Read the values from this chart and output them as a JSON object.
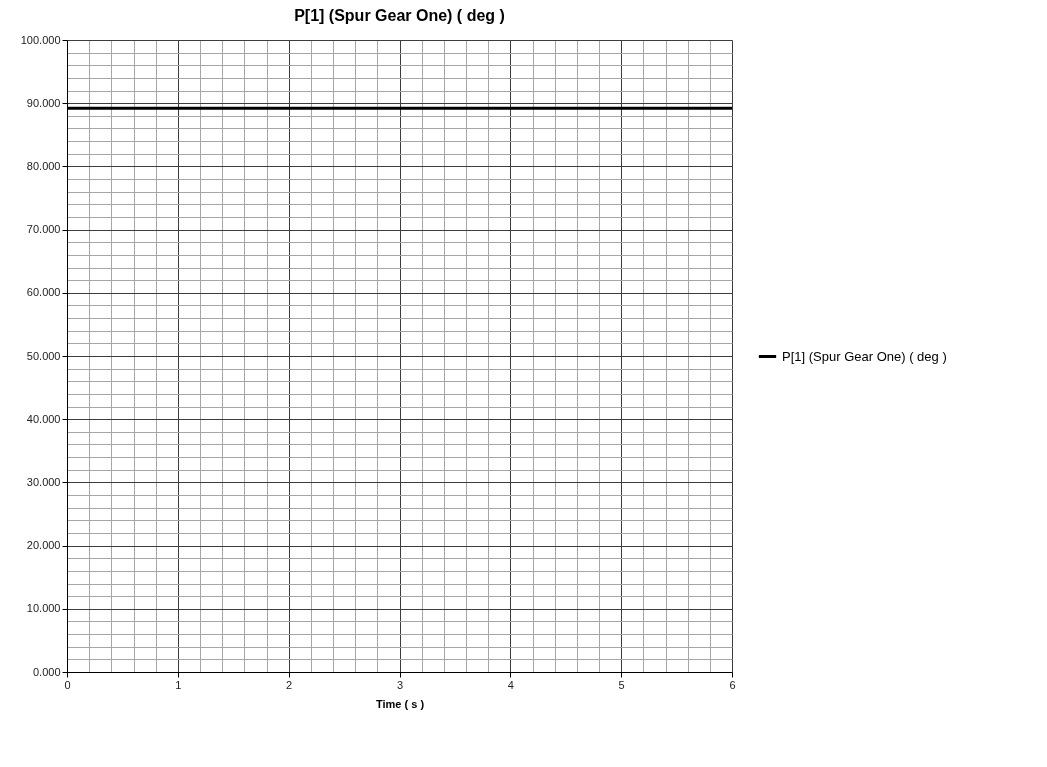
{
  "chart_data": {
    "type": "line",
    "title": "P[1] (Spur Gear One) ( deg )",
    "xlabel": "Time ( s )",
    "x": [
      0,
      6
    ],
    "series": [
      {
        "name": "P[1] (Spur Gear One) ( deg )",
        "color": "#000000",
        "values": [
          89.2,
          89.2
        ]
      }
    ],
    "xlim": [
      0,
      6
    ],
    "xticks": [
      0,
      {
        "value": 0.2,
        "label": null
      },
      {
        "value": 0.4,
        "label": null
      },
      {
        "value": 0.6,
        "label": null
      },
      {
        "value": 0.8,
        "label": null
      },
      1,
      {
        "value": 1.2,
        "label": null
      },
      {
        "value": 1.4,
        "label": null
      },
      {
        "value": 1.6,
        "label": null
      },
      {
        "value": 1.8,
        "label": null
      },
      2,
      {
        "value": 2.2,
        "label": null
      },
      {
        "value": 2.4,
        "label": null
      },
      {
        "value": 2.6,
        "label": null
      },
      {
        "value": 2.8,
        "label": null
      },
      3,
      {
        "value": 3.2,
        "label": null
      },
      {
        "value": 3.4,
        "label": null
      },
      {
        "value": 3.6,
        "label": null
      },
      {
        "value": 3.8,
        "label": null
      },
      4,
      {
        "value": 4.2,
        "label": null
      },
      {
        "value": 4.4,
        "label": null
      },
      {
        "value": 4.6,
        "label": null
      },
      {
        "value": 4.8,
        "label": null
      },
      5,
      {
        "value": 5.2,
        "label": null
      },
      {
        "value": 5.4,
        "label": null
      },
      {
        "value": 5.6,
        "label": null
      },
      {
        "value": 5.8,
        "label": null
      },
      6
    ],
    "ylim": [
      0,
      100
    ],
    "yticks": [
      {
        "value": 0,
        "label": "0.000"
      },
      {
        "value": 2,
        "label": null
      },
      {
        "value": 4,
        "label": null
      },
      {
        "value": 6,
        "label": null
      },
      {
        "value": 8,
        "label": null
      },
      {
        "value": 10,
        "label": "10.000"
      },
      {
        "value": 12,
        "label": null
      },
      {
        "value": 14,
        "label": null
      },
      {
        "value": 16,
        "label": null
      },
      {
        "value": 18,
        "label": null
      },
      {
        "value": 20,
        "label": "20.000"
      },
      {
        "value": 22,
        "label": null
      },
      {
        "value": 24,
        "label": null
      },
      {
        "value": 26,
        "label": null
      },
      {
        "value": 28,
        "label": null
      },
      {
        "value": 30,
        "label": "30.000"
      },
      {
        "value": 32,
        "label": null
      },
      {
        "value": 34,
        "label": null
      },
      {
        "value": 36,
        "label": null
      },
      {
        "value": 38,
        "label": null
      },
      {
        "value": 40,
        "label": "40.000"
      },
      {
        "value": 42,
        "label": null
      },
      {
        "value": 44,
        "label": null
      },
      {
        "value": 46,
        "label": null
      },
      {
        "value": 48,
        "label": null
      },
      {
        "value": 50,
        "label": "50.000"
      },
      {
        "value": 52,
        "label": null
      },
      {
        "value": 54,
        "label": null
      },
      {
        "value": 56,
        "label": null
      },
      {
        "value": 58,
        "label": null
      },
      {
        "value": 60,
        "label": "60.000"
      },
      {
        "value": 62,
        "label": null
      },
      {
        "value": 64,
        "label": null
      },
      {
        "value": 66,
        "label": null
      },
      {
        "value": 68,
        "label": null
      },
      {
        "value": 70,
        "label": "70.000"
      },
      {
        "value": 72,
        "label": null
      },
      {
        "value": 74,
        "label": null
      },
      {
        "value": 76,
        "label": null
      },
      {
        "value": 78,
        "label": null
      },
      {
        "value": 80,
        "label": "80.000"
      },
      {
        "value": 82,
        "label": null
      },
      {
        "value": 84,
        "label": null
      },
      {
        "value": 86,
        "label": null
      },
      {
        "value": 88,
        "label": null
      },
      {
        "value": 90,
        "label": "90.000"
      },
      {
        "value": 92,
        "label": null
      },
      {
        "value": 94,
        "label": null
      },
      {
        "value": 96,
        "label": null
      },
      {
        "value": 98,
        "label": null
      },
      {
        "value": 100,
        "label": "100.000"
      }
    ],
    "grid": true,
    "legend": "right",
    "line_style": "solid",
    "marker": "none"
  }
}
